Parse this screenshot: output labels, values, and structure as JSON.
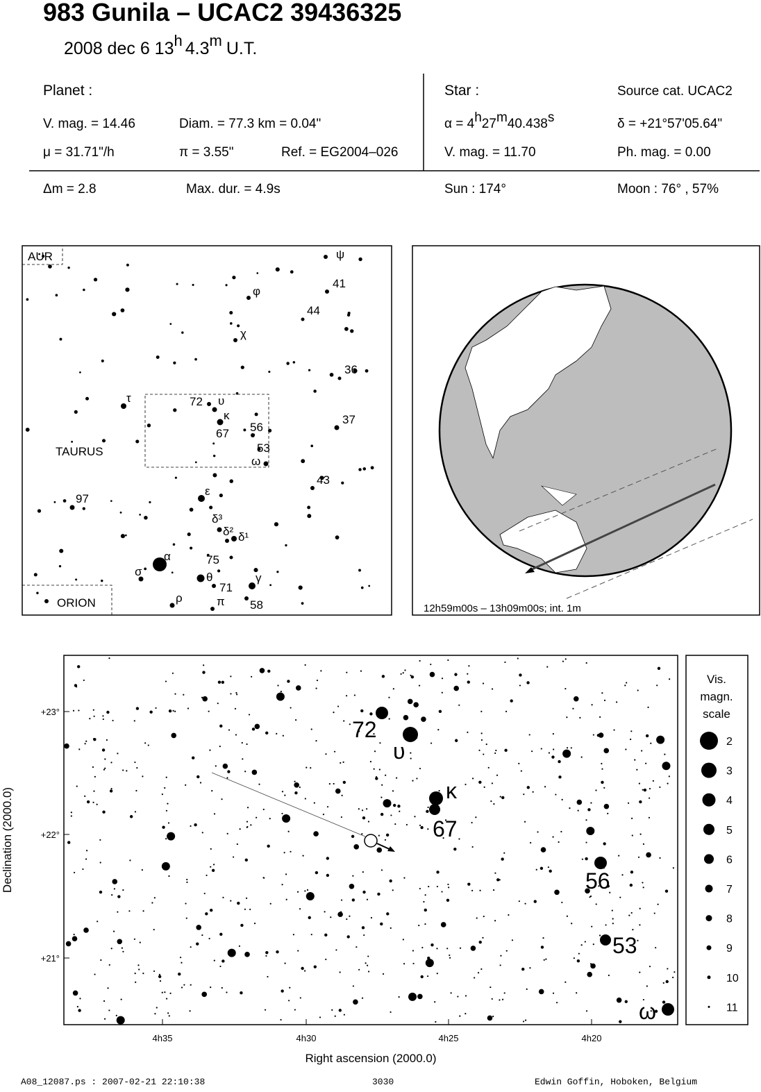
{
  "header": {
    "title": "983 Gunila  –  UCAC2 39436325",
    "date": "2008 dec  6  13",
    "hour_unit": "h",
    "minutes": "4.3",
    "minute_unit": "m",
    "time_scale": "U.T."
  },
  "planet": {
    "heading": "Planet :",
    "vmag": "V. mag. = 14.46",
    "diam": "Diam. = 77.3 km = 0.04\"",
    "mu": "μ =  31.71\"/h",
    "pi": "π =  3.55\"",
    "ref": "Ref. = EG2004–026"
  },
  "star": {
    "heading": "Star :",
    "source": "Source cat.  UCAC2",
    "ra": "α =  4",
    "ra_h": "h",
    "ra_min": "27",
    "ra_m": "m",
    "ra_sec": "40.438",
    "ra_s": "s",
    "dec": "δ = +21°57'05.64\"",
    "vmag": "V. mag. = 11.70",
    "phmag": "Ph. mag. =  0.00"
  },
  "event": {
    "dm": "Δm = 2.8",
    "maxdur": "Max. dur. = 4.9s",
    "sun": "Sun : 174°",
    "moon": "Moon :  76° , 57%"
  },
  "constellation_map": {
    "regions": [
      "AUR",
      "ORION",
      "TAURUS"
    ],
    "labels": [
      "ψ",
      "41",
      "φ",
      "44",
      "χ",
      "36",
      "τ",
      "72",
      "υ",
      "κ",
      "56",
      "67",
      "53",
      "ω",
      "37",
      "43",
      "97",
      "ε",
      "δ³",
      "δ²",
      "δ¹",
      "α",
      "75",
      "σ",
      "θ",
      "γ",
      "71",
      "ρ",
      "π",
      "58"
    ]
  },
  "globe": {
    "caption": "12h59m00s – 13h09m00s; int.  1m"
  },
  "detail_chart": {
    "y_label": "Declination (2000.0)",
    "x_label": "Right ascension (2000.0)",
    "yticks": [
      "+23°",
      "+22°",
      "+21°"
    ],
    "xticks": [
      "4h35",
      "4h30",
      "4h25",
      "4h20"
    ],
    "labels": [
      "72",
      "υ",
      "κ",
      "67",
      "56",
      "53",
      "ω"
    ]
  },
  "magnitude_scale": {
    "title": [
      "Vis.",
      "magn.",
      "scale"
    ],
    "magnitudes": [
      2,
      3,
      4,
      5,
      6,
      7,
      8,
      9,
      10,
      11
    ]
  },
  "footer": {
    "file": "A08_12087.ps : 2007-02-21 22:10:38",
    "number": "3030",
    "author": "Edwin Goffin, Hoboken, Belgium"
  }
}
